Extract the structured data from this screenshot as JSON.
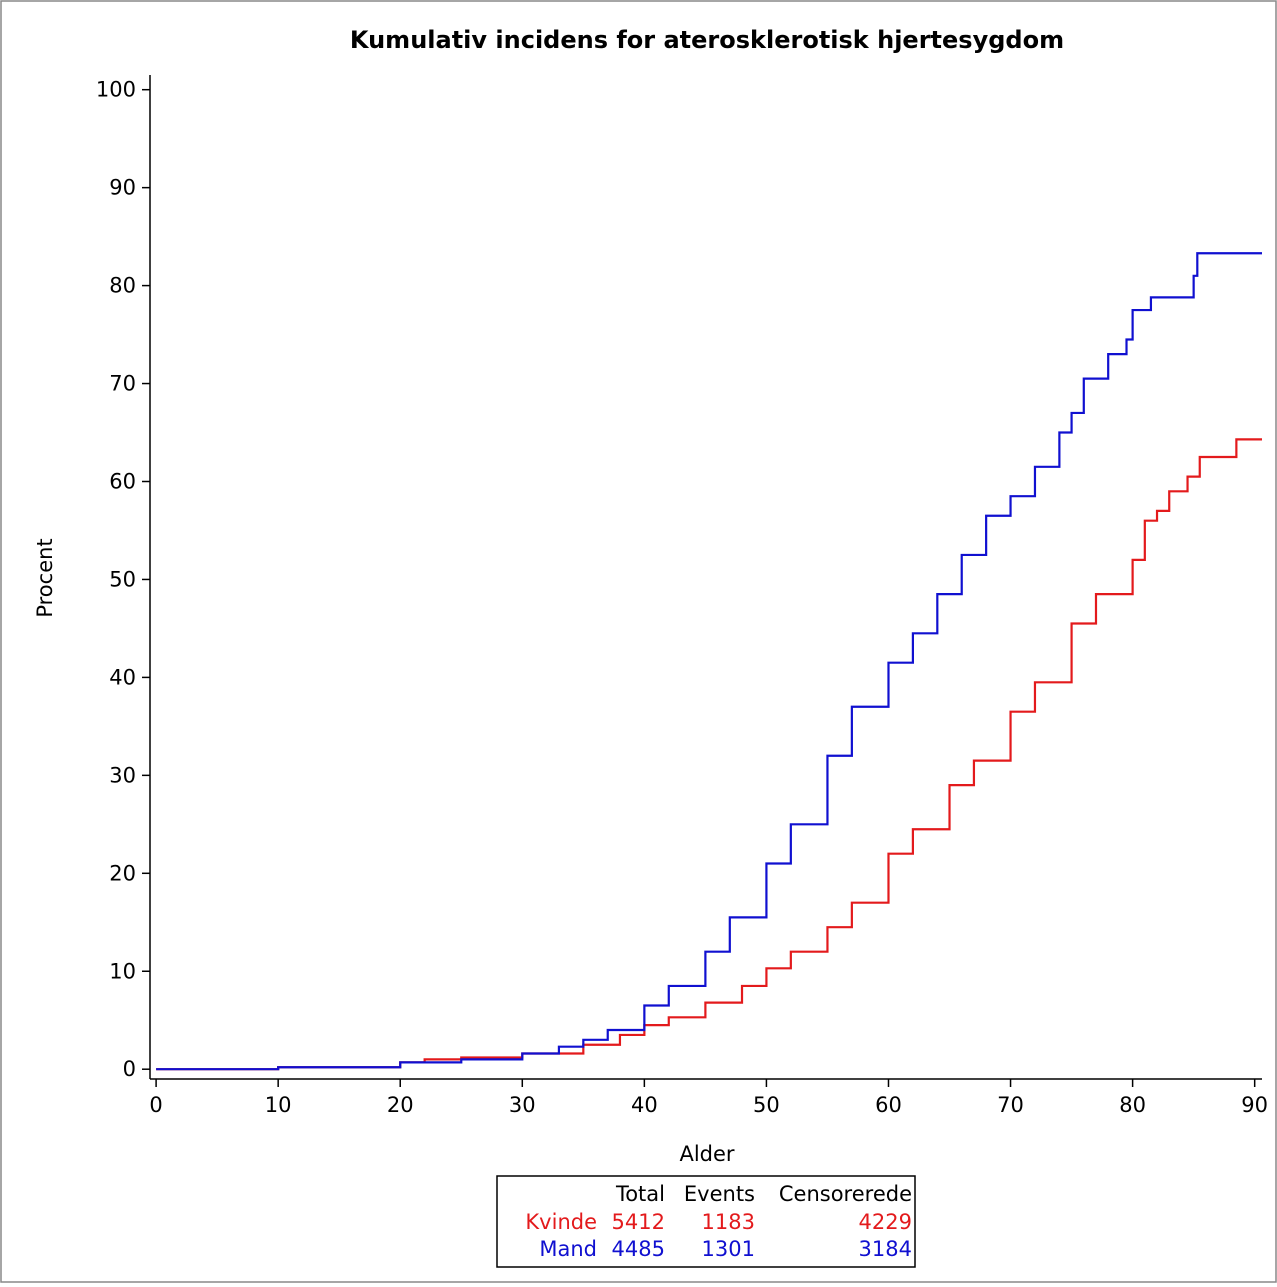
{
  "chart_data": {
    "type": "line",
    "step": true,
    "title": "Kumulativ incidens for aterosklerotisk hjertesygdom",
    "x_label": "Alder",
    "y_label": "Procent",
    "xlim": [
      -0.5,
      90.6
    ],
    "ylim": [
      -1,
      101.5
    ],
    "xticks": [
      0,
      10,
      20,
      30,
      40,
      50,
      60,
      70,
      80,
      90
    ],
    "yticks": [
      0,
      10,
      20,
      30,
      40,
      50,
      60,
      70,
      80,
      90,
      100
    ],
    "series": [
      {
        "name": "Kvinde",
        "color": "#e31a1c",
        "total": "5412",
        "events": "1183",
        "censored": "4229",
        "x": [
          0,
          10,
          20,
          22,
          25,
          30,
          35,
          38,
          40,
          42,
          45,
          48,
          50,
          52,
          55,
          57,
          60,
          62,
          65,
          67,
          70,
          72,
          75,
          77,
          80,
          81,
          82,
          83,
          84.5,
          85.5,
          88.5,
          90.6
        ],
        "values": [
          0,
          0.2,
          0.7,
          1.0,
          1.2,
          1.6,
          2.5,
          3.5,
          4.5,
          5.3,
          6.8,
          8.5,
          10.3,
          12,
          14.5,
          17,
          22,
          24.5,
          29,
          31.5,
          36.5,
          39.5,
          45.5,
          48.5,
          52,
          56,
          57,
          59,
          60.5,
          62.5,
          64.3,
          64.3
        ]
      },
      {
        "name": "Mand",
        "color": "#1010d0",
        "total": "4485",
        "events": "1301",
        "censored": "3184",
        "x": [
          0,
          10,
          20,
          25,
          30,
          33,
          35,
          37,
          40,
          42,
          45,
          47,
          50,
          52,
          55,
          57,
          60,
          62,
          64,
          66,
          68,
          70,
          72,
          74,
          75,
          76,
          78,
          79.5,
          80,
          81.5,
          85,
          85.3,
          90.6
        ],
        "values": [
          0,
          0.2,
          0.7,
          1,
          1.6,
          2.3,
          3,
          4,
          6.5,
          8.5,
          12,
          15.5,
          21,
          25,
          32,
          37,
          41.5,
          44.5,
          48.5,
          52.5,
          56.5,
          58.5,
          61.5,
          65,
          67,
          70.5,
          73,
          74.5,
          77.5,
          78.8,
          81,
          83.3,
          83.3
        ]
      }
    ],
    "stats_table": {
      "headers": [
        "Total",
        "Events",
        "Censorerede"
      ]
    }
  }
}
